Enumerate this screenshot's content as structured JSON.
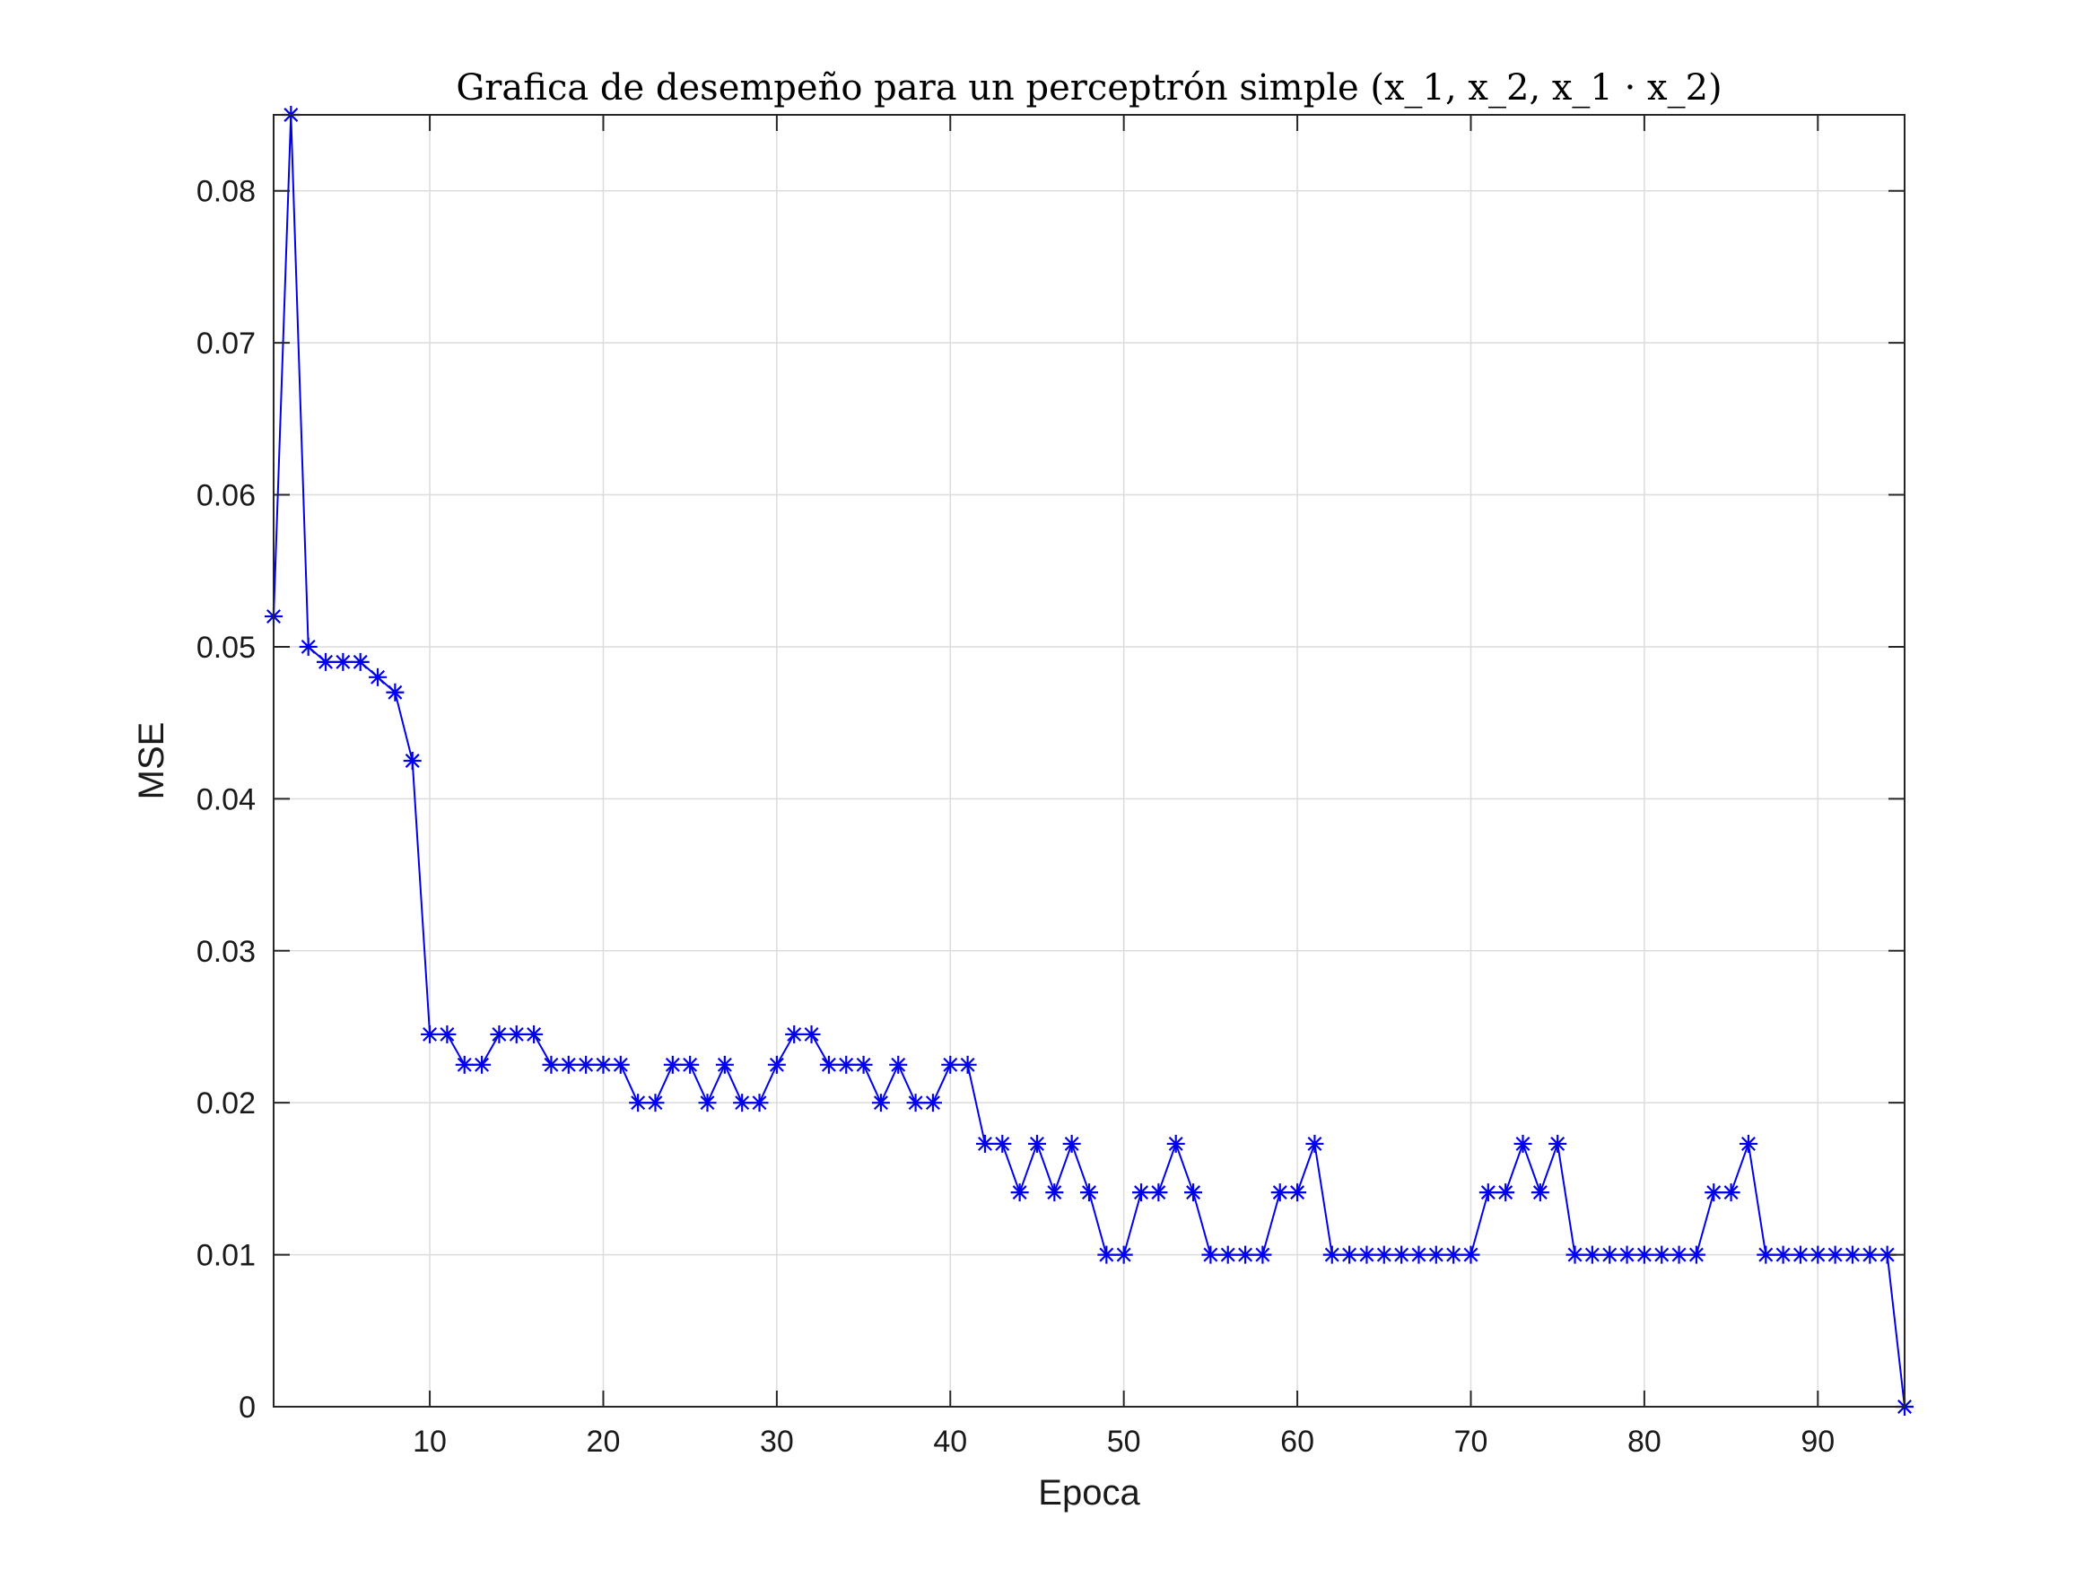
{
  "chart_data": {
    "type": "line",
    "title": "Grafica de desempeño para un perceptrón simple (x_1, x_2, x_1 · x_2)",
    "xlabel": "Epoca",
    "ylabel": "MSE",
    "xlim": [
      1,
      95
    ],
    "ylim": [
      0,
      0.085
    ],
    "xticks": [
      10,
      20,
      30,
      40,
      50,
      60,
      70,
      80,
      90
    ],
    "yticks": [
      0,
      0.01,
      0.02,
      0.03,
      0.04,
      0.05,
      0.06,
      0.07,
      0.08
    ],
    "xtick_labels": [
      "10",
      "20",
      "30",
      "40",
      "50",
      "60",
      "70",
      "80",
      "90"
    ],
    "ytick_labels": [
      "0",
      "0.01",
      "0.02",
      "0.03",
      "0.04",
      "0.05",
      "0.06",
      "0.07",
      "0.08"
    ],
    "grid": true,
    "marker": "asterisk",
    "line_color": "#0000ee",
    "series": [
      {
        "x": [
          1,
          2,
          3,
          4,
          5,
          6,
          7,
          8,
          9,
          10,
          11,
          12,
          13,
          14,
          15,
          16,
          17,
          18,
          19,
          20,
          21,
          22,
          23,
          24,
          25,
          26,
          27,
          28,
          29,
          30,
          31,
          32,
          33,
          34,
          35,
          36,
          37,
          38,
          39,
          40,
          41,
          42,
          43,
          44,
          45,
          46,
          47,
          48,
          49,
          50,
          51,
          52,
          53,
          54,
          55,
          56,
          57,
          58,
          59,
          60,
          61,
          62,
          63,
          64,
          65,
          66,
          67,
          68,
          69,
          70,
          71,
          72,
          73,
          74,
          75,
          76,
          77,
          78,
          79,
          80,
          81,
          82,
          83,
          84,
          85,
          86,
          87,
          88,
          89,
          90,
          91,
          92,
          93,
          94,
          95
        ],
        "y": [
          0.052,
          0.085,
          0.05,
          0.049,
          0.049,
          0.049,
          0.048,
          0.047,
          0.0425,
          0.0245,
          0.0245,
          0.0225,
          0.0225,
          0.0245,
          0.0245,
          0.0245,
          0.0225,
          0.0225,
          0.0225,
          0.0225,
          0.0225,
          0.02,
          0.02,
          0.0225,
          0.0225,
          0.02,
          0.0225,
          0.02,
          0.02,
          0.0225,
          0.0245,
          0.0245,
          0.0225,
          0.0225,
          0.0225,
          0.02,
          0.0225,
          0.02,
          0.02,
          0.0225,
          0.0225,
          0.0173,
          0.0173,
          0.0141,
          0.0173,
          0.0141,
          0.0173,
          0.0141,
          0.01,
          0.01,
          0.0141,
          0.0141,
          0.0173,
          0.0141,
          0.01,
          0.01,
          0.01,
          0.01,
          0.0141,
          0.0141,
          0.0173,
          0.01,
          0.01,
          0.01,
          0.01,
          0.01,
          0.01,
          0.01,
          0.01,
          0.01,
          0.0141,
          0.0141,
          0.0173,
          0.0141,
          0.0173,
          0.01,
          0.01,
          0.01,
          0.01,
          0.01,
          0.01,
          0.01,
          0.01,
          0.0141,
          0.0141,
          0.0173,
          0.01,
          0.01,
          0.01,
          0.01,
          0.01,
          0.01,
          0.01,
          0.01,
          0
        ]
      }
    ]
  }
}
